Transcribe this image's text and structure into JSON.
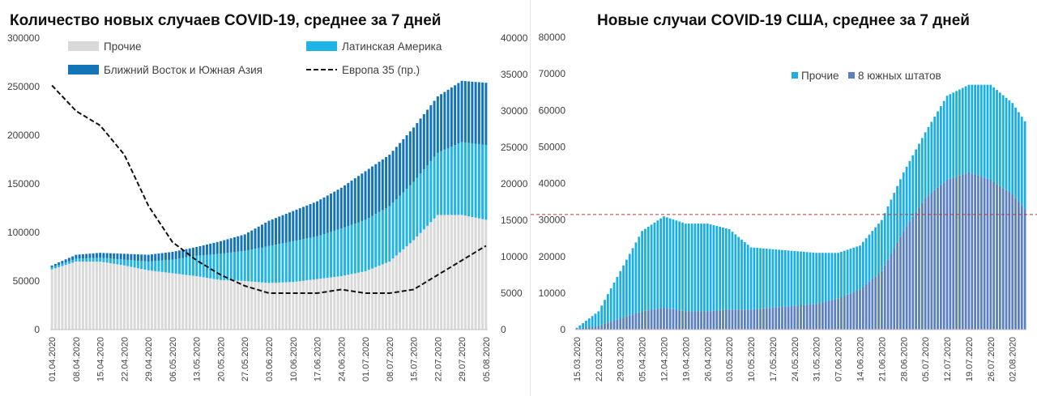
{
  "colors": {
    "others": "#d9d9d9",
    "latam": "#1fb4e6",
    "me_sa": "#1474b8",
    "europe": "#111111",
    "us_others": "#1aaee3",
    "us_south": "#5b7fbf",
    "ref_line": "#c0392b"
  },
  "chart_data": [
    {
      "type": "bar",
      "stacked": true,
      "title": "Количество новых случаев COVID-19, среднее за 7 дней",
      "ylim": [
        0,
        300000
      ],
      "y_ticks": [
        "0",
        "50000",
        "100000",
        "150000",
        "200000",
        "250000",
        "300000"
      ],
      "y2lim": [
        0,
        40000
      ],
      "y2_ticks": [
        "0",
        "5000",
        "10000",
        "15000",
        "20000",
        "25000",
        "30000",
        "35000",
        "40000"
      ],
      "x_ticks": [
        "01.04.2020",
        "08.04.2020",
        "15.04.2020",
        "22.04.2020",
        "29.04.2020",
        "06.05.2020",
        "13.05.2020",
        "20.05.2020",
        "27.05.2020",
        "03.06.2020",
        "10.06.2020",
        "17.06.2020",
        "24.06.2020",
        "01.07.2020",
        "08.07.2020",
        "15.07.2020",
        "22.07.2020",
        "29.07.2020",
        "05.08.2020"
      ],
      "legend": [
        "Прочие",
        "Латинская Америка",
        "Ближний Восток и Южная Азия",
        "Европа 35 (пр.)"
      ],
      "legend_position": "top",
      "x_start": "01.04.2020",
      "x_end": "05.08.2020",
      "series": [
        {
          "name": "Прочие",
          "kind": "bar",
          "x": [
            "01.04.2020",
            "08.04.2020",
            "15.04.2020",
            "22.04.2020",
            "29.04.2020",
            "06.05.2020",
            "13.05.2020",
            "20.05.2020",
            "27.05.2020",
            "03.06.2020",
            "10.06.2020",
            "17.06.2020",
            "24.06.2020",
            "01.07.2020",
            "08.07.2020",
            "15.07.2020",
            "22.07.2020",
            "29.07.2020",
            "05.08.2020"
          ],
          "values": [
            62000,
            70000,
            70000,
            66000,
            61000,
            58000,
            55000,
            51000,
            50000,
            48000,
            49000,
            52000,
            55000,
            60000,
            70000,
            92000,
            118000,
            118000,
            113000
          ]
        },
        {
          "name": "Латинская Америка",
          "kind": "bar",
          "x": [
            "01.04.2020",
            "08.04.2020",
            "15.04.2020",
            "22.04.2020",
            "29.04.2020",
            "06.05.2020",
            "13.05.2020",
            "20.05.2020",
            "27.05.2020",
            "03.06.2020",
            "10.06.2020",
            "17.06.2020",
            "24.06.2020",
            "01.07.2020",
            "08.07.2020",
            "15.07.2020",
            "22.07.2020",
            "29.07.2020",
            "05.08.2020"
          ],
          "values": [
            2000,
            3000,
            4000,
            6000,
            9000,
            14000,
            21000,
            27000,
            31000,
            38000,
            42000,
            44000,
            49000,
            53000,
            57000,
            60000,
            64000,
            75000,
            77000
          ]
        },
        {
          "name": "Ближний Восток и Южная Азия",
          "kind": "bar",
          "x": [
            "01.04.2020",
            "08.04.2020",
            "15.04.2020",
            "22.04.2020",
            "29.04.2020",
            "06.05.2020",
            "13.05.2020",
            "20.05.2020",
            "27.05.2020",
            "03.06.2020",
            "10.06.2020",
            "17.06.2020",
            "24.06.2020",
            "01.07.2020",
            "08.07.2020",
            "15.07.2020",
            "22.07.2020",
            "29.07.2020",
            "05.08.2020"
          ],
          "values": [
            2000,
            4000,
            5000,
            6000,
            7000,
            8000,
            9000,
            13000,
            17000,
            26000,
            31000,
            36000,
            42000,
            50000,
            53000,
            56000,
            58000,
            63000,
            64000
          ]
        },
        {
          "name": "Европа 35 (пр.)",
          "kind": "line",
          "axis": "right",
          "x": [
            "01.04.2020",
            "08.04.2020",
            "15.04.2020",
            "22.04.2020",
            "29.04.2020",
            "06.05.2020",
            "13.05.2020",
            "20.05.2020",
            "27.05.2020",
            "03.06.2020",
            "10.06.2020",
            "17.06.2020",
            "24.06.2020",
            "01.07.2020",
            "08.07.2020",
            "15.07.2020",
            "22.07.2020",
            "29.07.2020",
            "05.08.2020"
          ],
          "values": [
            33500,
            30000,
            28000,
            24000,
            17000,
            12000,
            9500,
            7500,
            6000,
            5000,
            5000,
            5000,
            5500,
            5000,
            5000,
            5500,
            7500,
            9500,
            11500
          ]
        }
      ]
    },
    {
      "type": "bar",
      "stacked": true,
      "title": "Новые случаи COVID-19  США, среднее за 7 дней",
      "ylim": [
        0,
        80000
      ],
      "y_ticks": [
        "0",
        "10000",
        "20000",
        "30000",
        "40000",
        "50000",
        "60000",
        "70000",
        "80000"
      ],
      "x_ticks": [
        "15.03.2020",
        "22.03.2020",
        "29.03.2020",
        "05.04.2020",
        "12.04.2020",
        "19.04.2020",
        "26.04.2020",
        "03.05.2020",
        "10.05.2020",
        "17.05.2020",
        "24.05.2020",
        "31.05.2020",
        "07.06.2020",
        "14.06.2020",
        "21.06.2020",
        "28.06.2020",
        "05.07.2020",
        "12.07.2020",
        "19.07.2020",
        "26.07.2020",
        "02.08.2020"
      ],
      "legend": [
        "Прочие",
        "8 южных штатов"
      ],
      "legend_position": "top",
      "reference_line": 31500,
      "x_start": "15.03.2020",
      "x_end": "06.08.2020",
      "series": [
        {
          "name": "8 южных штатов",
          "kind": "bar",
          "x": [
            "15.03.2020",
            "22.03.2020",
            "29.03.2020",
            "05.04.2020",
            "12.04.2020",
            "19.04.2020",
            "26.04.2020",
            "03.05.2020",
            "10.05.2020",
            "17.05.2020",
            "24.05.2020",
            "31.05.2020",
            "07.06.2020",
            "14.06.2020",
            "21.06.2020",
            "28.06.2020",
            "05.07.2020",
            "12.07.2020",
            "19.07.2020",
            "26.07.2020",
            "02.08.2020",
            "06.08.2020"
          ],
          "values": [
            200,
            1000,
            3000,
            5000,
            6000,
            5000,
            5000,
            5500,
            5500,
            6000,
            6500,
            7000,
            8500,
            11000,
            16000,
            27000,
            36000,
            41000,
            43000,
            41000,
            37000,
            33000
          ]
        },
        {
          "name": "Прочие",
          "kind": "bar",
          "x": [
            "15.03.2020",
            "22.03.2020",
            "29.03.2020",
            "05.04.2020",
            "12.04.2020",
            "19.04.2020",
            "26.04.2020",
            "03.05.2020",
            "10.05.2020",
            "17.05.2020",
            "24.05.2020",
            "31.05.2020",
            "07.06.2020",
            "14.06.2020",
            "21.06.2020",
            "28.06.2020",
            "05.07.2020",
            "12.07.2020",
            "19.07.2020",
            "26.07.2020",
            "02.08.2020",
            "06.08.2020"
          ],
          "values": [
            300,
            4000,
            13000,
            22000,
            25000,
            24000,
            24000,
            22000,
            17000,
            16000,
            15000,
            14000,
            12500,
            12000,
            14000,
            16000,
            18000,
            23000,
            24000,
            26000,
            25000,
            24000
          ]
        }
      ]
    }
  ]
}
